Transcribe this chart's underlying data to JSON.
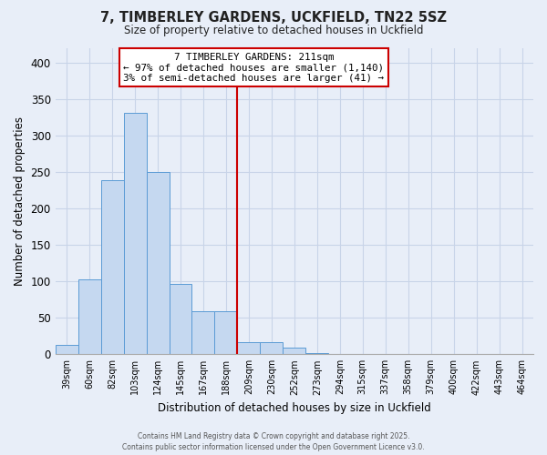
{
  "title": "7, TIMBERLEY GARDENS, UCKFIELD, TN22 5SZ",
  "subtitle": "Size of property relative to detached houses in Uckfield",
  "xlabel": "Distribution of detached houses by size in Uckfield",
  "ylabel": "Number of detached properties",
  "bar_labels": [
    "39sqm",
    "60sqm",
    "82sqm",
    "103sqm",
    "124sqm",
    "145sqm",
    "167sqm",
    "188sqm",
    "209sqm",
    "230sqm",
    "252sqm",
    "273sqm",
    "294sqm",
    "315sqm",
    "337sqm",
    "358sqm",
    "379sqm",
    "400sqm",
    "422sqm",
    "443sqm",
    "464sqm"
  ],
  "bar_values": [
    13,
    103,
    238,
    331,
    250,
    97,
    59,
    59,
    16,
    16,
    9,
    2,
    1,
    0,
    0,
    0,
    0,
    0,
    0,
    0,
    0
  ],
  "bar_color": "#c5d8f0",
  "bar_edge_color": "#5b9bd5",
  "vline_color": "#cc0000",
  "annotation_title": "7 TIMBERLEY GARDENS: 211sqm",
  "annotation_line1": "← 97% of detached houses are smaller (1,140)",
  "annotation_line2": "3% of semi-detached houses are larger (41) →",
  "annotation_box_facecolor": "#ffffff",
  "annotation_box_edgecolor": "#cc0000",
  "ylim": [
    0,
    420
  ],
  "yticks": [
    0,
    50,
    100,
    150,
    200,
    250,
    300,
    350,
    400
  ],
  "grid_color": "#c8d4e8",
  "bg_color": "#e8eef8",
  "footer_line1": "Contains HM Land Registry data © Crown copyright and database right 2025.",
  "footer_line2": "Contains public sector information licensed under the Open Government Licence v3.0."
}
